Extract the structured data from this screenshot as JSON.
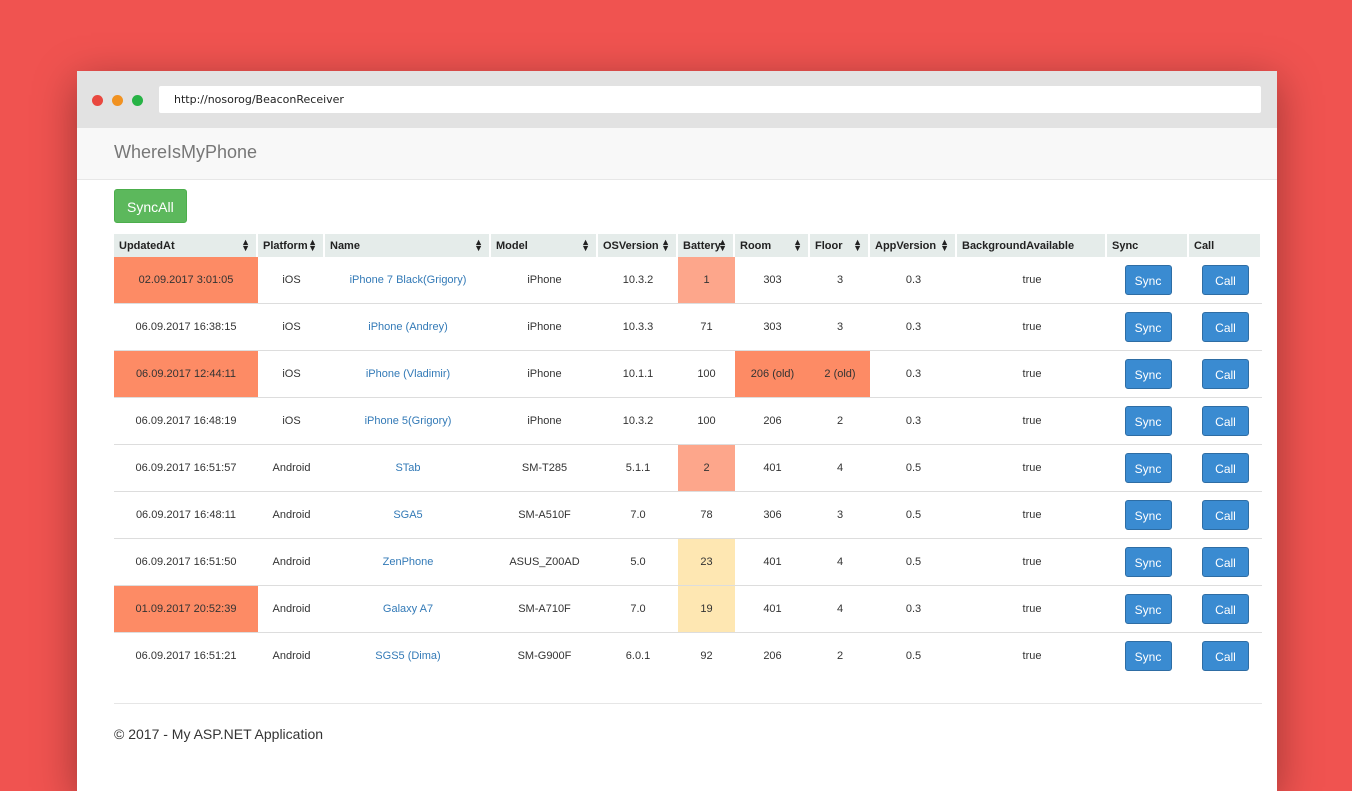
{
  "browser": {
    "url": "http://nosorog/BeaconReceiver"
  },
  "app": {
    "brand": "WhereIsMyPhone",
    "sync_all_label": "SyncAll"
  },
  "table": {
    "headers": [
      "UpdatedAt",
      "Platform",
      "Name",
      "Model",
      "OSVersion",
      "Battery",
      "Room",
      "Floor",
      "AppVersion",
      "BackgroundAvailable",
      "Sync",
      "Call"
    ],
    "sync_label": "Sync",
    "call_label": "Call",
    "rows": [
      {
        "updated": "02.09.2017 3:01:05",
        "platform": "iOS",
        "name": "iPhone 7 Black(Grigory)",
        "model": "iPhone",
        "os": "10.3.2",
        "battery": "1",
        "room": "303",
        "floor": "3",
        "app": "0.3",
        "bg": "true"
      },
      {
        "updated": "06.09.2017 16:38:15",
        "platform": "iOS",
        "name": "iPhone (Andrey)",
        "model": "iPhone",
        "os": "10.3.3",
        "battery": "71",
        "room": "303",
        "floor": "3",
        "app": "0.3",
        "bg": "true"
      },
      {
        "updated": "06.09.2017 12:44:11",
        "platform": "iOS",
        "name": "iPhone (Vladimir)",
        "model": "iPhone",
        "os": "10.1.1",
        "battery": "100",
        "room": "206 (old)",
        "floor": "2 (old)",
        "app": "0.3",
        "bg": "true"
      },
      {
        "updated": "06.09.2017 16:48:19",
        "platform": "iOS",
        "name": "iPhone 5(Grigory)",
        "model": "iPhone",
        "os": "10.3.2",
        "battery": "100",
        "room": "206",
        "floor": "2",
        "app": "0.3",
        "bg": "true"
      },
      {
        "updated": "06.09.2017 16:51:57",
        "platform": "Android",
        "name": "STab",
        "model": "SM-T285",
        "os": "5.1.1",
        "battery": "2",
        "room": "401",
        "floor": "4",
        "app": "0.5",
        "bg": "true"
      },
      {
        "updated": "06.09.2017 16:48:11",
        "platform": "Android",
        "name": "SGA5",
        "model": "SM-A510F",
        "os": "7.0",
        "battery": "78",
        "room": "306",
        "floor": "3",
        "app": "0.5",
        "bg": "true"
      },
      {
        "updated": "06.09.2017 16:51:50",
        "platform": "Android",
        "name": "ZenPhone",
        "model": "ASUS_Z00AD",
        "os": "5.0",
        "battery": "23",
        "room": "401",
        "floor": "4",
        "app": "0.5",
        "bg": "true"
      },
      {
        "updated": "01.09.2017 20:52:39",
        "platform": "Android",
        "name": "Galaxy A7",
        "model": "SM-A710F",
        "os": "7.0",
        "battery": "19",
        "room": "401",
        "floor": "4",
        "app": "0.3",
        "bg": "true"
      },
      {
        "updated": "06.09.2017 16:51:21",
        "platform": "Android",
        "name": "SGS5 (Dima)",
        "model": "SM-G900F",
        "os": "6.0.1",
        "battery": "92",
        "room": "206",
        "floor": "2",
        "app": "0.5",
        "bg": "true"
      }
    ]
  },
  "footer": {
    "text": "© 2017 - My ASP.NET Application"
  },
  "colors": {
    "stale": "#fd8b65",
    "battery_critical": "#fda68b",
    "battery_low": "#fee7b2",
    "primary": "#3a8bd1",
    "success": "#5cb85c"
  }
}
